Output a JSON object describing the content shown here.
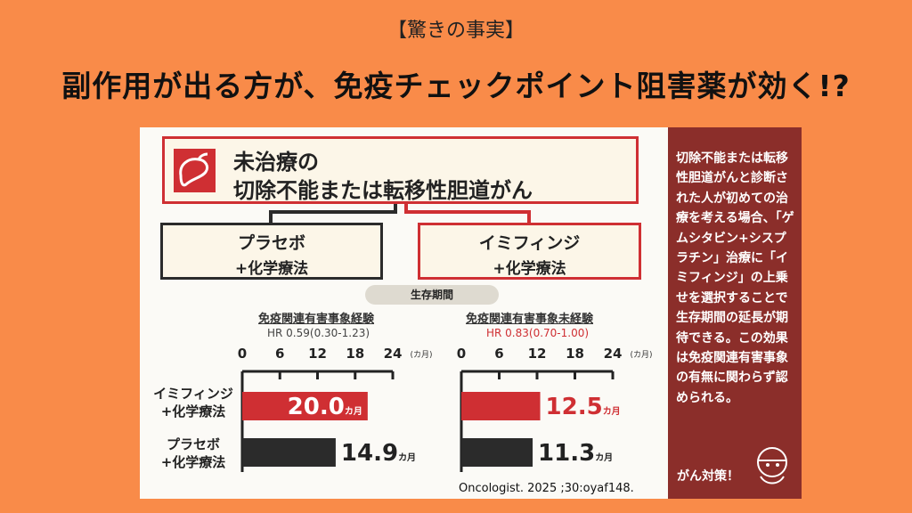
{
  "tag": "【驚きの事実】",
  "headline": "副作用が出る方が、免疫チェックポイント阻害薬が効く!?",
  "condition": {
    "line1": "未治療の",
    "line2": "切除不能または転移性胆道がん"
  },
  "arms": {
    "placebo": {
      "line1": "プラセボ",
      "line2": "+化学療法"
    },
    "imfinzi": {
      "line1": "イミフィンジ",
      "line2": "+化学療法"
    }
  },
  "survival_label": "生存期間",
  "row_labels": {
    "imfinzi": {
      "line1": "イミフィンジ",
      "line2": "+化学療法"
    },
    "placebo": {
      "line1": "プラセボ",
      "line2": "+化学療法"
    }
  },
  "citation": "Oncologist. 2025 ;30:oyaf148.",
  "side": {
    "text": "切除不能または転移性胆道がんと診断された人が初めての治療を考える場合、「ゲムシタビン+シスプラチン」治療に「イミフィンジ」の上乗せを選択することで生存期間の延長が期待できる。この効果は免疫関連有害事象の有無に関わらず認められる。",
    "brand": "がん対策！"
  },
  "colors": {
    "background": "#f98b49",
    "accent_red": "#cf2f33",
    "dark": "#2b2b2b",
    "side_panel": "#8b2e2a"
  },
  "chart_data": [
    {
      "type": "bar",
      "title": "免疫関連有害事象経験",
      "subtitle": "HR 0.59(0.30-1.23)",
      "unit": "(カ月)",
      "categories": [
        "イミフィンジ+化学療法",
        "プラセボ+化学療法"
      ],
      "values": [
        20.0,
        14.9
      ],
      "value_labels": [
        {
          "int": "20.0",
          "unit": "カ月"
        },
        {
          "int": "14.9",
          "unit": "カ月"
        }
      ],
      "bar_colors": [
        "#cf2f33",
        "#2b2b2b"
      ],
      "ticks": [
        0,
        6,
        12,
        18,
        24
      ],
      "xlim": [
        0,
        24
      ]
    },
    {
      "type": "bar",
      "title": "免疫関連有害事象未経験",
      "subtitle": "HR 0.83(0.70-1.00)",
      "unit": "(カ月)",
      "categories": [
        "イミフィンジ+化学療法",
        "プラセボ+化学療法"
      ],
      "values": [
        12.5,
        11.3
      ],
      "value_labels": [
        {
          "int": "12.5",
          "unit": "カ月"
        },
        {
          "int": "11.3",
          "unit": "カ月"
        }
      ],
      "bar_colors": [
        "#cf2f33",
        "#2b2b2b"
      ],
      "ticks": [
        0,
        6,
        12,
        18,
        24
      ],
      "xlim": [
        0,
        24
      ]
    }
  ]
}
